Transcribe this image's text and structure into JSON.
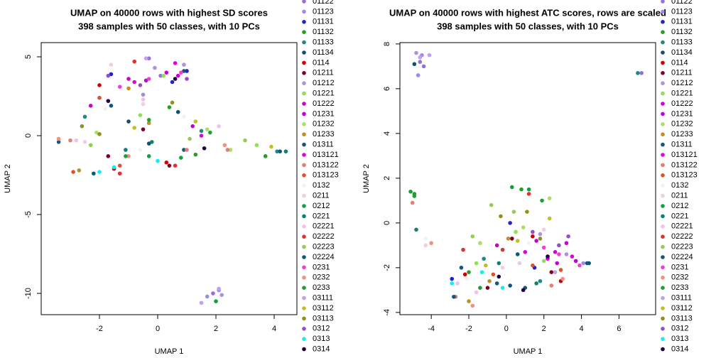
{
  "chart_data": [
    {
      "type": "scatter",
      "title": "UMAP on 40000 rows with highest SD scores",
      "subtitle": "398 samples with 50 classes, with 10 PCs",
      "xlabel": "UMAP 1",
      "ylabel": "UMAP 2",
      "xlim": [
        -4.0,
        4.78
      ],
      "ylim": [
        -11.35,
        5.9
      ],
      "xticks": [
        -2,
        0,
        2,
        4
      ],
      "yticks": [
        -10,
        -5,
        0,
        5
      ],
      "series": [
        {
          "name": "01122",
          "color": "#9370db",
          "x": [
            -0.3,
            0.1,
            1.9
          ],
          "y": [
            4.9,
            3.8,
            -10.0
          ]
        },
        {
          "name": "01123",
          "color": "#a08ae8",
          "x": [
            -0.5,
            1.7,
            2.1
          ],
          "y": [
            2.6,
            -10.2,
            -9.8
          ]
        },
        {
          "name": "01131",
          "color": "#2222cc",
          "x": [
            -1.6,
            0.5,
            1.0
          ],
          "y": [
            3.9,
            3.4,
            4.1
          ]
        },
        {
          "name": "01132",
          "color": "#22a022",
          "x": [
            0.4,
            1.3,
            3.7
          ],
          "y": [
            1.8,
            -1.2,
            -1.3
          ]
        },
        {
          "name": "01133",
          "color": "#208a80",
          "x": [
            -2.5,
            1.5,
            4.1
          ],
          "y": [
            1.2,
            0.3,
            -1.0
          ]
        },
        {
          "name": "01134",
          "color": "#105070",
          "x": [
            -1.0,
            0.7,
            -0.3
          ],
          "y": [
            0.9,
            1.5,
            -0.5
          ]
        },
        {
          "name": "0114",
          "color": "#d00000",
          "x": [
            -2.0,
            -1.5,
            0.3
          ],
          "y": [
            3.2,
            -2.1,
            -1.7
          ]
        },
        {
          "name": "01211",
          "color": "#800020",
          "x": [
            -0.5,
            0.4,
            -1.7
          ],
          "y": [
            0.4,
            -1.9,
            -1.3
          ]
        },
        {
          "name": "01212",
          "color": "#b090e0",
          "x": [
            -0.1,
            0.9,
            2.2
          ],
          "y": [
            4.3,
            4.5,
            -10.1
          ]
        },
        {
          "name": "01221",
          "color": "#90e050",
          "x": [
            -0.6,
            0.2,
            3.4
          ],
          "y": [
            1.3,
            3.8,
            -0.6
          ]
        },
        {
          "name": "01222",
          "color": "#d000d0",
          "x": [
            -1.0,
            0.7,
            -2.3
          ],
          "y": [
            3.6,
            3.8,
            1.9
          ]
        },
        {
          "name": "01231",
          "color": "#c000e0",
          "x": [
            -0.4,
            0.3,
            1.2
          ],
          "y": [
            3.5,
            4.0,
            0.6
          ]
        },
        {
          "name": "01232",
          "color": "#a8e068",
          "x": [
            -2.1,
            1.7,
            2.5
          ],
          "y": [
            0.2,
            0.4,
            -0.9
          ]
        },
        {
          "name": "01233",
          "color": "#c09020",
          "x": [
            -2.7,
            -0.3,
            -1.0
          ],
          "y": [
            -2.2,
            0.8,
            3.0
          ]
        },
        {
          "name": "01311",
          "color": "#105a80",
          "x": [
            -3.4,
            0.9,
            4.2
          ],
          "y": [
            -0.4,
            -0.9,
            -1.0
          ]
        },
        {
          "name": "013121",
          "color": "#e000e0",
          "x": [
            -0.8,
            0.6,
            1.5
          ],
          "y": [
            3.4,
            4.6,
            0.0
          ]
        },
        {
          "name": "013122",
          "color": "#e08070",
          "x": [
            -3.0,
            1.0,
            2.4
          ],
          "y": [
            -0.3,
            -0.9,
            -0.9
          ]
        },
        {
          "name": "013123",
          "color": "#e05030",
          "x": [
            -1.3,
            -2.0,
            -2.9
          ],
          "y": [
            -1.9,
            2.4,
            -2.3
          ]
        },
        {
          "name": "0132",
          "color": "#f8f0f0",
          "x": [
            -1.8,
            0.9,
            -0.6
          ],
          "y": [
            1.7,
            1.2,
            -0.9
          ]
        },
        {
          "name": "0211",
          "color": "#f0d0e0",
          "x": [
            -2.5,
            -1.6,
            -0.5
          ],
          "y": [
            -0.4,
            4.5,
            2.0
          ]
        },
        {
          "name": "0212",
          "color": "#10a040",
          "x": [
            -0.3,
            0.8,
            2.0
          ],
          "y": [
            -1.3,
            -1.4,
            -10.5
          ]
        },
        {
          "name": "0221",
          "color": "#108070",
          "x": [
            -1.1,
            -0.2,
            4.4
          ],
          "y": [
            -0.9,
            -0.4,
            -1.0
          ]
        },
        {
          "name": "02221",
          "color": "#f0c0f0",
          "x": [
            -2.8,
            -0.5,
            2.1
          ],
          "y": [
            -0.3,
            2.3,
            0.6
          ]
        },
        {
          "name": "02222",
          "color": "#e03030",
          "x": [
            -1.3,
            -0.8,
            0.6
          ],
          "y": [
            -2.4,
            4.7,
            -1.9
          ]
        },
        {
          "name": "02223",
          "color": "#90d050",
          "x": [
            -2.3,
            1.1,
            3.0
          ],
          "y": [
            -0.6,
            -0.2,
            -0.3
          ]
        },
        {
          "name": "02224",
          "color": "#105878",
          "x": [
            -2.2,
            -1.6,
            0.9
          ],
          "y": [
            -2.4,
            1.9,
            4.1
          ]
        },
        {
          "name": "0231",
          "color": "#f040d0",
          "x": [
            -1.3,
            -0.3,
            0.8
          ],
          "y": [
            3.1,
            3.6,
            4.0
          ]
        },
        {
          "name": "0232",
          "color": "#f09080",
          "x": [
            -3.4,
            -1.0,
            2.3
          ],
          "y": [
            -0.2,
            -1.3,
            -0.6
          ]
        },
        {
          "name": "0233",
          "color": "#20a030",
          "x": [
            -1.1,
            -0.3,
            1.8
          ],
          "y": [
            -1.3,
            1.0,
            0.2
          ]
        },
        {
          "name": "03111",
          "color": "#c0a0f0",
          "x": [
            -0.4,
            1.5,
            2.1
          ],
          "y": [
            4.9,
            -10.6,
            -9.7
          ]
        },
        {
          "name": "03112",
          "color": "#c0c020",
          "x": [
            -0.8,
            1.3,
            3.9
          ],
          "y": [
            0.5,
            0.9,
            -0.7
          ]
        },
        {
          "name": "03113",
          "color": "#909020",
          "x": [
            -2.6,
            -2.0,
            0.5
          ],
          "y": [
            0.6,
            0.1,
            2.1
          ]
        },
        {
          "name": "0312",
          "color": "#9050c0",
          "x": [
            -1.7,
            -0.6,
            1.0
          ],
          "y": [
            3.8,
            3.2,
            3.6
          ]
        },
        {
          "name": "0313",
          "color": "#10f0f0",
          "x": [
            -2.0,
            -1.5,
            0.0
          ],
          "y": [
            -2.3,
            -2.0,
            -1.6
          ]
        },
        {
          "name": "0314",
          "color": "#200040",
          "x": [
            -1.7,
            0.6,
            1.6
          ],
          "y": [
            2.2,
            3.6,
            -0.8
          ]
        }
      ]
    },
    {
      "type": "scatter",
      "title": "UMAP on 40000 rows with highest ATC scores, rows are scaled",
      "subtitle": "398 samples with 50 classes, with 10 PCs",
      "xlabel": "UMAP 1",
      "ylabel": "UMAP 2",
      "xlim": [
        -5.67,
        7.95
      ],
      "ylim": [
        -4.1,
        8.06
      ],
      "xticks": [
        -4,
        -2,
        0,
        2,
        4,
        6
      ],
      "yticks": [
        -4,
        -2,
        0,
        2,
        4,
        6,
        8
      ],
      "series": [
        {
          "name": "01122",
          "color": "#9370db",
          "x": [
            -4.6,
            -4.4,
            7.2
          ],
          "y": [
            7.2,
            7.0,
            6.7
          ]
        },
        {
          "name": "01123",
          "color": "#a08ae8",
          "x": [
            -4.5,
            -4.7,
            4.1
          ],
          "y": [
            7.5,
            6.6,
            -1.8
          ]
        },
        {
          "name": "01131",
          "color": "#2222cc",
          "x": [
            -2.9,
            0.2,
            1.5
          ],
          "y": [
            -2.5,
            0.0,
            -2.0
          ]
        },
        {
          "name": "01132",
          "color": "#22a022",
          "x": [
            -4.9,
            0.8,
            -2.0
          ],
          "y": [
            1.3,
            1.5,
            -2.2
          ]
        },
        {
          "name": "01133",
          "color": "#208a80",
          "x": [
            -1.2,
            1.8,
            7.0
          ],
          "y": [
            -1.6,
            -2.6,
            6.7
          ]
        },
        {
          "name": "01134",
          "color": "#105070",
          "x": [
            -4.9,
            0.2,
            4.4
          ],
          "y": [
            7.1,
            -2.8,
            -1.8
          ]
        },
        {
          "name": "0114",
          "color": "#d00000",
          "x": [
            -2.2,
            1.4,
            2.9
          ],
          "y": [
            -2.3,
            -0.6,
            -2.6
          ]
        },
        {
          "name": "01211",
          "color": "#800020",
          "x": [
            -1.0,
            0.3,
            2.4
          ],
          "y": [
            -2.9,
            -0.7,
            -2.2
          ]
        },
        {
          "name": "01212",
          "color": "#b090e0",
          "x": [
            -4.8,
            1.8,
            3.2
          ],
          "y": [
            7.6,
            -0.5,
            -1.4
          ]
        },
        {
          "name": "01221",
          "color": "#90e050",
          "x": [
            -1.6,
            0.5,
            2.0
          ],
          "y": [
            -1.8,
            -0.4,
            -1.7
          ]
        },
        {
          "name": "01222",
          "color": "#d000d0",
          "x": [
            2.6,
            3.2,
            -0.5
          ],
          "y": [
            -1.3,
            -0.9,
            -1.0
          ]
        },
        {
          "name": "01231",
          "color": "#c000e0",
          "x": [
            1.6,
            2.7,
            3.7
          ],
          "y": [
            -0.8,
            -1.8,
            -1.7
          ]
        },
        {
          "name": "01232",
          "color": "#a8e068",
          "x": [
            -1.4,
            0.9,
            2.3
          ],
          "y": [
            -0.9,
            -0.2,
            1.1
          ]
        },
        {
          "name": "01233",
          "color": "#c09020",
          "x": [
            -2.0,
            -0.9,
            0.1
          ],
          "y": [
            -3.5,
            -2.6,
            -0.7
          ]
        },
        {
          "name": "01311",
          "color": "#105a80",
          "x": [
            -2.4,
            -0.5,
            1.0
          ],
          "y": [
            -2.0,
            -2.7,
            -2.9
          ]
        },
        {
          "name": "013121",
          "color": "#e000e0",
          "x": [
            1.0,
            2.2,
            3.5
          ],
          "y": [
            -1.3,
            -1.6,
            -1.5
          ]
        },
        {
          "name": "013122",
          "color": "#e08070",
          "x": [
            -5.0,
            -2.7,
            2.4
          ],
          "y": [
            0.9,
            -3.3,
            -2.8
          ]
        },
        {
          "name": "013123",
          "color": "#e05030",
          "x": [
            -0.7,
            1.4,
            2.9
          ],
          "y": [
            -2.3,
            -1.9,
            -2.1
          ]
        },
        {
          "name": "0132",
          "color": "#f8f0f0",
          "x": [
            -4.3,
            -2.1,
            1.2
          ],
          "y": [
            -0.7,
            -2.5,
            -0.9
          ]
        },
        {
          "name": "0211",
          "color": "#f0d0e0",
          "x": [
            -4.3,
            -0.2,
            2.0
          ],
          "y": [
            -1.0,
            -2.0,
            -0.3
          ]
        },
        {
          "name": "0212",
          "color": "#10a040",
          "x": [
            -5.1,
            0.3,
            1.2
          ],
          "y": [
            1.4,
            1.6,
            1.5
          ]
        },
        {
          "name": "0221",
          "color": "#108070",
          "x": [
            -4.8,
            -0.4,
            1.6
          ],
          "y": [
            -0.3,
            -1.8,
            -2.7
          ]
        },
        {
          "name": "02221",
          "color": "#f0c0f0",
          "x": [
            -2.6,
            -1.6,
            0.7
          ],
          "y": [
            -2.7,
            -3.1,
            -1.8
          ]
        },
        {
          "name": "02222",
          "color": "#e03030",
          "x": [
            -2.3,
            -0.2,
            1.2
          ],
          "y": [
            -1.2,
            -1.2,
            1.3
          ]
        },
        {
          "name": "02223",
          "color": "#90d050",
          "x": [
            -1.8,
            -0.8,
            0.4
          ],
          "y": [
            -0.6,
            0.8,
            0.5
          ]
        },
        {
          "name": "02224",
          "color": "#105878",
          "x": [
            -2.8,
            0.6,
            4.3
          ],
          "y": [
            -3.3,
            -1.4,
            -1.8
          ]
        },
        {
          "name": "0231",
          "color": "#f040d0",
          "x": [
            2.0,
            2.8,
            3.9
          ],
          "y": [
            -1.1,
            -1.4,
            -1.9
          ]
        },
        {
          "name": "0232",
          "color": "#f09080",
          "x": [
            -4.0,
            -1.8,
            3.0
          ],
          "y": [
            -0.9,
            -3.7,
            -2.5
          ]
        },
        {
          "name": "0233",
          "color": "#20a030",
          "x": [
            -4.9,
            -1.4,
            1.9
          ],
          "y": [
            1.2,
            -2.9,
            1.0
          ]
        },
        {
          "name": "03111",
          "color": "#c0a0f0",
          "x": [
            -4.6,
            -4.1,
            2.6
          ],
          "y": [
            7.4,
            7.5,
            -2.2
          ]
        },
        {
          "name": "03112",
          "color": "#c0c020",
          "x": [
            -1.1,
            0.6,
            2.3
          ],
          "y": [
            -1.9,
            -0.8,
            0.2
          ]
        },
        {
          "name": "03113",
          "color": "#909020",
          "x": [
            -0.3,
            1.1,
            1.8
          ],
          "y": [
            0.3,
            0.5,
            -0.7
          ]
        },
        {
          "name": "0312",
          "color": "#9050c0",
          "x": [
            1.4,
            2.8,
            3.3
          ],
          "y": [
            -0.4,
            -1.0,
            -0.6
          ]
        },
        {
          "name": "0313",
          "color": "#10f0f0",
          "x": [
            -2.9,
            -1.3,
            -0.2
          ],
          "y": [
            -2.7,
            -2.2,
            -2.9
          ]
        },
        {
          "name": "0314",
          "color": "#200040",
          "x": [
            -0.4,
            0.9,
            2.2
          ],
          "y": [
            -2.4,
            -3.0,
            -1.5
          ]
        }
      ]
    }
  ]
}
